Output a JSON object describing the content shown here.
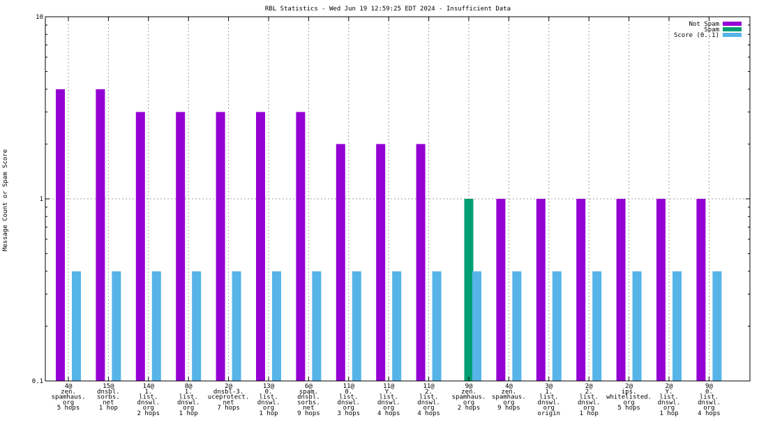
{
  "chart_data": {
    "type": "bar",
    "title": "RBL Statistics - Wed Jun 19 12:59:25 EDT 2024 - Insufficient Data",
    "ylabel": "Message Count or Spam Score",
    "xlabel": "",
    "yscale": "log",
    "ylim": [
      0.1,
      10
    ],
    "yticks": [
      {
        "value": 0.1,
        "label": "0.1"
      },
      {
        "value": 1,
        "label": "1"
      },
      {
        "value": 10,
        "label": "10"
      }
    ],
    "grid": true,
    "legend_position": "top-right",
    "categories": [
      [
        "4@",
        "zen.",
        "spamhaus.",
        "org",
        "5 hops"
      ],
      [
        "15@",
        "dnsbl.",
        "sorbs.",
        "net",
        "1 hop"
      ],
      [
        "14@",
        "1.",
        "list.",
        "dnswl.",
        "org",
        "2 hops"
      ],
      [
        "8@",
        "1.",
        "list.",
        "dnswl.",
        "org",
        "1 hop"
      ],
      [
        "2@",
        "dnsbl-3.",
        "uceprotect.",
        "net",
        "7 hops"
      ],
      [
        "13@",
        "0.",
        "list.",
        "dnswl.",
        "org",
        "1 hop"
      ],
      [
        "6@",
        "spam.",
        "dnsbl.",
        "sorbs.",
        "net",
        "9 hops"
      ],
      [
        "11@",
        "0.",
        "list.",
        "dnswl.",
        "org",
        "3 hops"
      ],
      [
        "11@",
        "Y.",
        "list.",
        "dnswl.",
        "org",
        "4 hops"
      ],
      [
        "11@",
        "2.",
        "list.",
        "dnswl.",
        "org",
        "4 hops"
      ],
      [
        "9@",
        "zen.",
        "spamhaus.",
        "org",
        "2 hops"
      ],
      [
        "4@",
        "zen.",
        "spamhaus.",
        "org",
        "9 hops"
      ],
      [
        "3@",
        "1.",
        "list.",
        "dnswl.",
        "org",
        "origin"
      ],
      [
        "2@",
        "2.",
        "list.",
        "dnswl.",
        "org",
        "1 hop"
      ],
      [
        "2@",
        "ips.",
        "whitelisted.",
        "org",
        "5 hops"
      ],
      [
        "2@",
        "Y.",
        "list.",
        "dnswl.",
        "org",
        "1 hop"
      ],
      [
        "9@",
        "0.",
        "list.",
        "dnswl.",
        "org",
        "4 hops"
      ]
    ],
    "series": [
      {
        "name": "Not Spam",
        "color": "#9400d3",
        "values": [
          4,
          4,
          3,
          3,
          3,
          3,
          3,
          2,
          2,
          2,
          0,
          1,
          1,
          1,
          1,
          1,
          1
        ]
      },
      {
        "name": "Spam",
        "color": "#009e73",
        "values": [
          0,
          0,
          0,
          0,
          0,
          0,
          0,
          0,
          0,
          0,
          1,
          0,
          0,
          0,
          0,
          0,
          0
        ]
      },
      {
        "name": "Score (0..1)",
        "color": "#56b4e9",
        "values": [
          0.4,
          0.4,
          0.4,
          0.4,
          0.4,
          0.4,
          0.4,
          0.4,
          0.4,
          0.4,
          0.4,
          0.4,
          0.4,
          0.4,
          0.4,
          0.4,
          0.4
        ]
      }
    ]
  }
}
